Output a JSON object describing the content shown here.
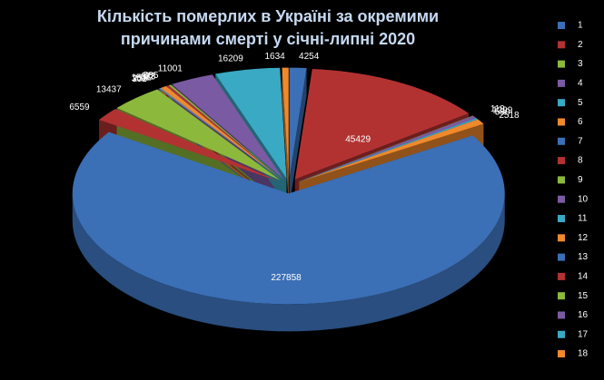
{
  "chart_data": {
    "type": "pie3d",
    "title": "Кількість померлих в Україні за окремими причинами смерті у січні-липні 2020",
    "categories": [
      "1",
      "2",
      "3",
      "4",
      "5",
      "6",
      "7",
      "8",
      "9",
      "10",
      "11",
      "12",
      "13",
      "14",
      "15",
      "16",
      "17",
      "18"
    ],
    "values": [
      4254,
      45429,
      119,
      1299,
      590,
      2518,
      227858,
      6559,
      13437,
      302,
      259,
      1531,
      22,
      678,
      585,
      11001,
      16209,
      1634
    ],
    "colors": [
      "#3b6fb6",
      "#b23232",
      "#8cb83c",
      "#7a5aa3",
      "#3aa9c3",
      "#f0892c",
      "#3b6fb6",
      "#b23232",
      "#8cb83c",
      "#7a5aa3",
      "#3aa9c3",
      "#f0892c",
      "#3b6fb6",
      "#b23232",
      "#8cb83c",
      "#7a5aa3",
      "#3aa9c3",
      "#f0892c"
    ],
    "legend": "right"
  }
}
